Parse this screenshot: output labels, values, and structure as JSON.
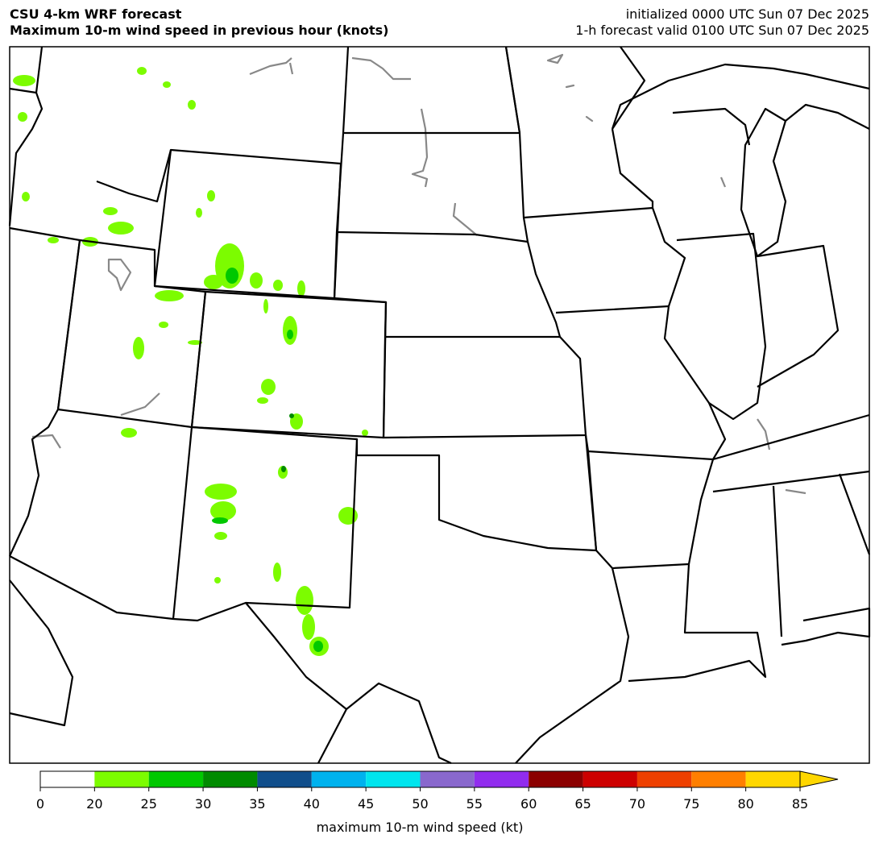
{
  "header": {
    "title_left": [
      "CSU 4-km WRF forecast",
      "Maximum 10-m wind speed in previous hour (knots)"
    ],
    "title_right": [
      "initialized 0000 UTC Sun 07 Dec 2025",
      "1-h forecast valid 0100 UTC Sun 07 Dec 2025"
    ]
  },
  "colorbar": {
    "label": "maximum 10-m wind speed (kt)",
    "boundaries": [
      0,
      20,
      25,
      30,
      35,
      40,
      45,
      50,
      55,
      60,
      65,
      70,
      75,
      80,
      85
    ],
    "colors": [
      "#ffffff",
      "#7cfc00",
      "#00c800",
      "#008b00",
      "#104e8b",
      "#00b2ee",
      "#00e5ee",
      "#8968cd",
      "#912cee",
      "#8b0000",
      "#cd0000",
      "#ee4000",
      "#ff7f00",
      "#ffd700"
    ],
    "extend_color": "#ffd700"
  }
}
